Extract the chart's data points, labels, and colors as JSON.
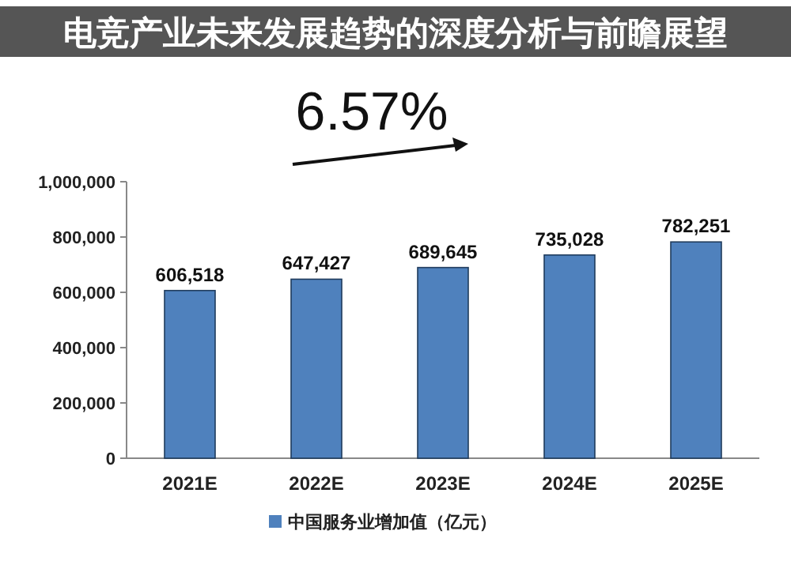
{
  "chart_data": {
    "type": "bar",
    "title": "电竞产业未来发展趋势的深度分析与前瞻展望",
    "categories": [
      "2021E",
      "2022E",
      "2023E",
      "2024E",
      "2025E"
    ],
    "series": [
      {
        "name": "中国服务业增加值（亿元）",
        "color": "#4f81bd",
        "values": [
          606518,
          647427,
          689645,
          735028,
          782251
        ],
        "value_labels": [
          "606,518",
          "647,427",
          "689,645",
          "735,028",
          "782,251"
        ]
      }
    ],
    "ylim": [
      0,
      1000000
    ],
    "yticks": [
      {
        "value": 0,
        "label": "0"
      },
      {
        "value": 200000,
        "label": "200,000"
      },
      {
        "value": 400000,
        "label": "400,000"
      },
      {
        "value": 600000,
        "label": "600,000"
      },
      {
        "value": 800000,
        "label": "800,000"
      },
      {
        "value": 1000000,
        "label": "1,000,000"
      }
    ],
    "legend": "bottom",
    "annotations": [
      "6.57%"
    ]
  }
}
